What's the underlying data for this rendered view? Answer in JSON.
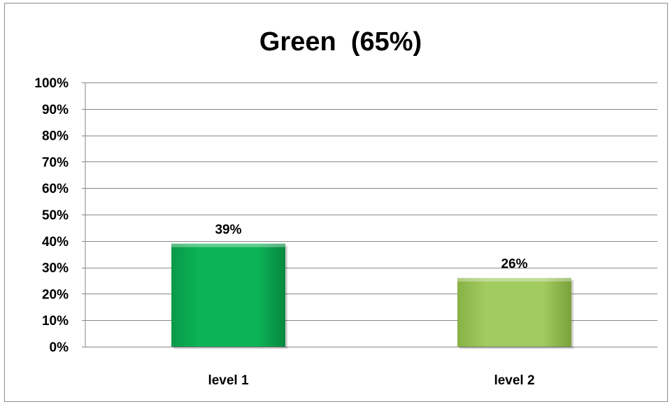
{
  "chart_data": {
    "type": "bar",
    "title": "Green  (65%)",
    "categories": [
      "level 1",
      "level 2"
    ],
    "values": [
      39,
      26
    ],
    "data_labels": [
      "39%",
      "26%"
    ],
    "ylim": [
      0,
      100
    ],
    "y_ticks": [
      0,
      10,
      20,
      30,
      40,
      50,
      60,
      70,
      80,
      90,
      100
    ],
    "y_tick_labels": [
      "0%",
      "10%",
      "20%",
      "30%",
      "40%",
      "50%",
      "60%",
      "70%",
      "80%",
      "90%",
      "100%"
    ],
    "grid": true,
    "legend": "none",
    "colors": [
      "#0bb457",
      "#9dc75a"
    ]
  }
}
